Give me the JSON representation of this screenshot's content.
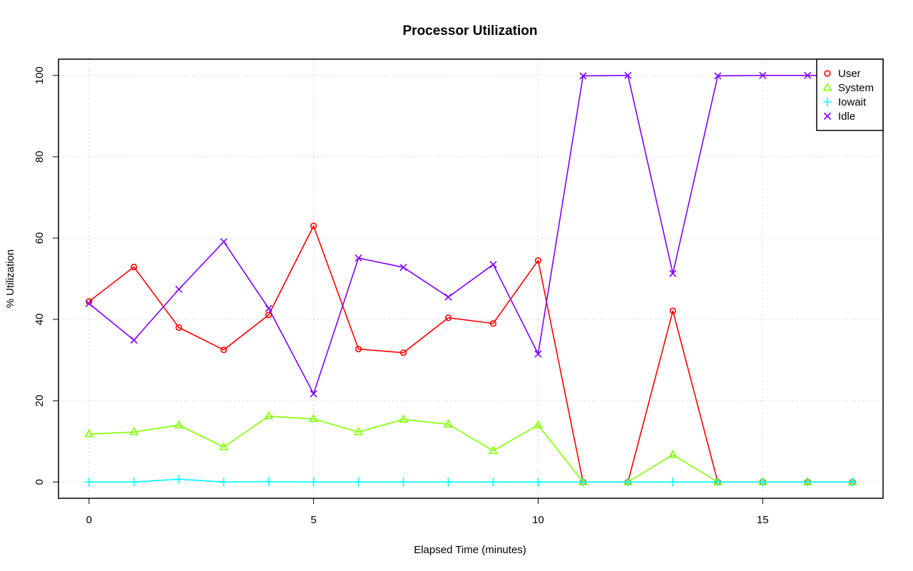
{
  "chart_data": {
    "type": "line",
    "title": "Processor Utilization",
    "xlabel": "Elapsed Time (minutes)",
    "ylabel": "% Utilization",
    "xlim": [
      -0.68,
      17.68
    ],
    "ylim": [
      -4,
      104
    ],
    "x_ticks": [
      0,
      5,
      10,
      15
    ],
    "y_ticks": [
      0,
      20,
      40,
      60,
      80,
      100
    ],
    "grid": true,
    "legend_position": "top-right",
    "x": [
      0,
      1,
      2,
      3,
      4,
      5,
      6,
      7,
      8,
      9,
      10,
      11,
      12,
      13,
      14,
      15,
      16,
      17
    ],
    "series": [
      {
        "name": "User",
        "color": "#ff0000",
        "marker": "circle",
        "values": [
          44.4,
          52.9,
          38.0,
          32.5,
          41.1,
          63.0,
          32.7,
          31.8,
          40.4,
          39.0,
          54.5,
          0,
          0,
          42.1,
          0,
          0,
          0,
          0
        ]
      },
      {
        "name": "System",
        "color": "#80ff00",
        "marker": "triangle",
        "values": [
          11.8,
          12.3,
          14.0,
          8.6,
          16.2,
          15.5,
          12.3,
          15.4,
          14.2,
          7.7,
          14.0,
          0,
          0,
          6.7,
          0,
          0,
          0,
          0
        ]
      },
      {
        "name": "Iowait",
        "color": "#00ffff",
        "marker": "plus",
        "values": [
          0,
          0,
          0.7,
          0,
          0.1,
          0,
          0,
          0,
          0,
          0,
          0,
          0,
          0,
          0,
          0,
          0,
          0,
          0
        ]
      },
      {
        "name": "Idle",
        "color": "#8000ff",
        "marker": "x",
        "values": [
          43.9,
          34.9,
          47.4,
          59.1,
          42.7,
          21.7,
          55.1,
          52.8,
          45.5,
          53.5,
          31.5,
          99.9,
          100,
          51.3,
          99.9,
          100,
          100,
          100
        ]
      }
    ]
  }
}
